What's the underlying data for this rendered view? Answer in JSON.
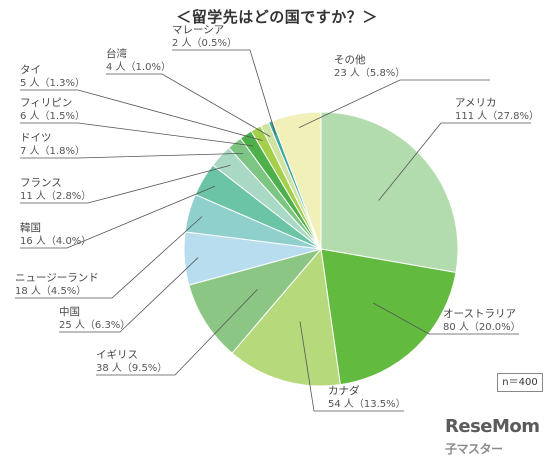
{
  "chart_data": {
    "type": "pie",
    "title": "＜留学先はどの国ですか？＞",
    "n_label": "n＝400",
    "slices": [
      {
        "name": "アメリカ",
        "value": 111,
        "label": "111 人（27.8%）",
        "color": "#b3dcae"
      },
      {
        "name": "オーストラリア",
        "value": 80,
        "label": "80 人（20.0%）",
        "color": "#62ba3e"
      },
      {
        "name": "カナダ",
        "value": 54,
        "label": "54 人（13.5%）",
        "color": "#b6d97b"
      },
      {
        "name": "イギリス",
        "value": 38,
        "label": "38 人（9.5%）",
        "color": "#8cc685"
      },
      {
        "name": "中国",
        "value": 25,
        "label": "25 人（6.3%）",
        "color": "#b7ddee"
      },
      {
        "name": "ニュージーランド",
        "value": 18,
        "label": "18 人（4.5%）",
        "color": "#8fd0cd"
      },
      {
        "name": "韓国",
        "value": 16,
        "label": "16 人（4.0%）",
        "color": "#6cc4a6"
      },
      {
        "name": "フランス",
        "value": 11,
        "label": "11 人（2.8%）",
        "color": "#a9d8c4"
      },
      {
        "name": "ドイツ",
        "value": 7,
        "label": "7 人（1.8%）",
        "color": "#7dc583"
      },
      {
        "name": "フィリピン",
        "value": 6,
        "label": "6 人（1.5%）",
        "color": "#4db04a"
      },
      {
        "name": "タイ",
        "value": 5,
        "label": "5 人（1.3%）",
        "color": "#a3cf4a"
      },
      {
        "name": "台湾",
        "value": 4,
        "label": "4 人（1.0%）",
        "color": "#cfe3a3"
      },
      {
        "name": "マレーシア",
        "value": 2,
        "label": "2 人（0.5%）",
        "color": "#3aa79d"
      },
      {
        "name": "その他",
        "value": 23,
        "label": "23 人（5.8%）",
        "color": "#f1f0b9"
      }
    ]
  },
  "logo": {
    "main": "ReseMom",
    "sub": "子マスター"
  }
}
